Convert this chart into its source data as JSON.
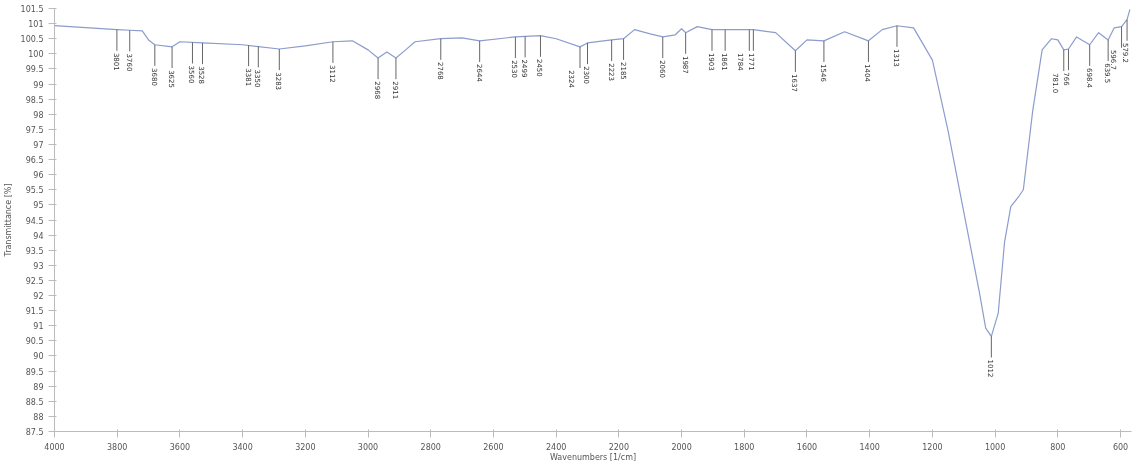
{
  "chart_data": {
    "type": "line",
    "xlabel": "Wavenumbers [1/cm]",
    "ylabel": "Transmittance [%]",
    "xlim": [
      4000,
      565
    ],
    "ylim": [
      87.5,
      101.5
    ],
    "xticks": [
      4000,
      3800,
      3600,
      3400,
      3200,
      3000,
      2800,
      2600,
      2400,
      2200,
      2000,
      1800,
      1600,
      1400,
      1200,
      1000,
      800,
      600
    ],
    "yticks": [
      87.5,
      88,
      88.5,
      89,
      89.5,
      90,
      90.5,
      91,
      91.5,
      92,
      92.5,
      93,
      93.5,
      94,
      94.5,
      95,
      95.5,
      96,
      96.5,
      97,
      97.5,
      98,
      98.5,
      99,
      99.5,
      100,
      100.5,
      101,
      101.5
    ],
    "grid": false,
    "marker": "none",
    "line_style": "solid",
    "series": [
      {
        "color": "#8c9ccc",
        "x": [
          4000,
          3801,
          3760,
          3720,
          3700,
          3680,
          3625,
          3600,
          3528,
          3400,
          3283,
          3200,
          3112,
          3050,
          3000,
          2968,
          2940,
          2911,
          2880,
          2850,
          2768,
          2700,
          2644,
          2530,
          2450,
          2400,
          2324,
          2300,
          2223,
          2185,
          2150,
          2100,
          2060,
          2020,
          2000,
          1987,
          1950,
          1903,
          1861,
          1784,
          1771,
          1700,
          1637,
          1600,
          1546,
          1480,
          1404,
          1360,
          1313,
          1260,
          1200,
          1150,
          1100,
          1050,
          1030,
          1012,
          990,
          970,
          950,
          925,
          910,
          880,
          850,
          820,
          800,
          781,
          766,
          740,
          698.4,
          670,
          639.5,
          620,
          596.7,
          579.2,
          570
        ],
        "values": [
          100.93,
          100.8,
          100.78,
          100.76,
          100.46,
          100.3,
          100.23,
          100.4,
          100.36,
          100.3,
          100.16,
          100.26,
          100.4,
          100.43,
          100.13,
          99.86,
          100.06,
          99.86,
          100.13,
          100.4,
          100.5,
          100.53,
          100.43,
          100.56,
          100.6,
          100.5,
          100.23,
          100.36,
          100.46,
          100.5,
          100.8,
          100.66,
          100.56,
          100.63,
          100.83,
          100.7,
          100.9,
          100.8,
          100.8,
          100.8,
          100.8,
          100.7,
          100.1,
          100.46,
          100.43,
          100.73,
          100.43,
          100.8,
          100.93,
          100.86,
          99.79,
          97.45,
          94.77,
          92.1,
          90.92,
          90.65,
          91.42,
          93.76,
          94.94,
          95.27,
          95.5,
          98.12,
          100.13,
          100.5,
          100.46,
          100.13,
          100.16,
          100.56,
          100.3,
          100.7,
          100.46,
          100.86,
          100.9,
          101.13,
          101.47
        ]
      }
    ],
    "annotations": [
      {
        "text": "3801",
        "x": 3801,
        "y": 100.8
      },
      {
        "text": "3760",
        "x": 3760,
        "y": 100.78
      },
      {
        "text": "3680",
        "x": 3680,
        "y": 100.3
      },
      {
        "text": "3625",
        "x": 3625,
        "y": 100.23
      },
      {
        "text": "3560",
        "x": 3560,
        "y": 100.38
      },
      {
        "text": "3528",
        "x": 3528,
        "y": 100.36
      },
      {
        "text": "3381",
        "x": 3381,
        "y": 100.29
      },
      {
        "text": "3350",
        "x": 3350,
        "y": 100.25
      },
      {
        "text": "3283",
        "x": 3283,
        "y": 100.16
      },
      {
        "text": "3112",
        "x": 3112,
        "y": 100.4
      },
      {
        "text": "2968",
        "x": 2968,
        "y": 99.86
      },
      {
        "text": "2911",
        "x": 2911,
        "y": 99.86
      },
      {
        "text": "2768",
        "x": 2768,
        "y": 100.5
      },
      {
        "text": "2644",
        "x": 2644,
        "y": 100.43
      },
      {
        "text": "2530",
        "x": 2530,
        "y": 100.56
      },
      {
        "text": "2499",
        "x": 2499,
        "y": 100.58
      },
      {
        "text": "2450",
        "x": 2450,
        "y": 100.6
      },
      {
        "text": "2324",
        "x": 2324,
        "y": 100.23
      },
      {
        "text": "2300",
        "x": 2300,
        "y": 100.36
      },
      {
        "text": "2223",
        "x": 2223,
        "y": 100.46
      },
      {
        "text": "2185",
        "x": 2185,
        "y": 100.5
      },
      {
        "text": "2060",
        "x": 2060,
        "y": 100.56
      },
      {
        "text": "1987",
        "x": 1987,
        "y": 100.7
      },
      {
        "text": "1903",
        "x": 1903,
        "y": 100.8
      },
      {
        "text": "1861",
        "x": 1861,
        "y": 100.8
      },
      {
        "text": "1784",
        "x": 1784,
        "y": 100.8
      },
      {
        "text": "1771",
        "x": 1771,
        "y": 100.8
      },
      {
        "text": "1637",
        "x": 1637,
        "y": 100.1
      },
      {
        "text": "1546",
        "x": 1546,
        "y": 100.43
      },
      {
        "text": "1404",
        "x": 1404,
        "y": 100.43
      },
      {
        "text": "1313",
        "x": 1313,
        "y": 100.93
      },
      {
        "text": "1012",
        "x": 1012,
        "y": 90.65
      },
      {
        "text": "781.0",
        "x": 781,
        "y": 100.13
      },
      {
        "text": "766",
        "x": 766,
        "y": 100.16
      },
      {
        "text": "698.4",
        "x": 698.4,
        "y": 100.3
      },
      {
        "text": "639.5",
        "x": 639.5,
        "y": 100.46
      },
      {
        "text": "596.7",
        "x": 596.7,
        "y": 100.9
      },
      {
        "text": "579.2",
        "x": 579.2,
        "y": 101.13
      }
    ]
  }
}
